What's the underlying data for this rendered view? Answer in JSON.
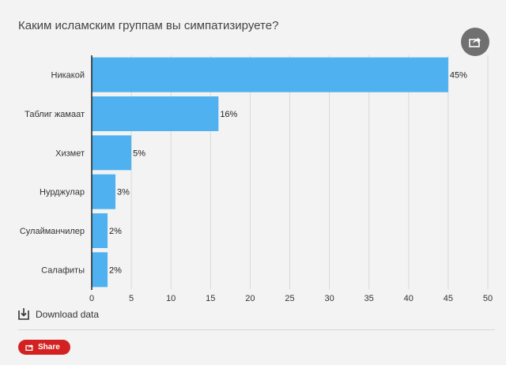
{
  "title": "Каким исламским группам вы симпатизируете?",
  "download_label": "Download data",
  "share_label": "Share",
  "colors": {
    "bar": "#4fb1ef",
    "grid": "#d9d9d9",
    "axis": "#222222",
    "share_button": "#d32121",
    "share_round": "#707070"
  },
  "chart_data": {
    "type": "bar",
    "orientation": "horizontal",
    "title": "Каким исламским группам вы симпатизируете?",
    "categories": [
      "Никакой",
      "Таблиг жамаат",
      "Хизмет",
      "Нурджулар",
      "Сулайманчилер",
      "Салафиты"
    ],
    "values": [
      45,
      16,
      5,
      3,
      2,
      2
    ],
    "value_labels": [
      "45%",
      "16%",
      "5%",
      "3%",
      "2%",
      "2%"
    ],
    "xlim": [
      0,
      50
    ],
    "xticks": [
      0,
      5,
      10,
      15,
      20,
      25,
      30,
      35,
      40,
      45,
      50
    ],
    "xlabel": "",
    "ylabel": "",
    "grid": true
  }
}
